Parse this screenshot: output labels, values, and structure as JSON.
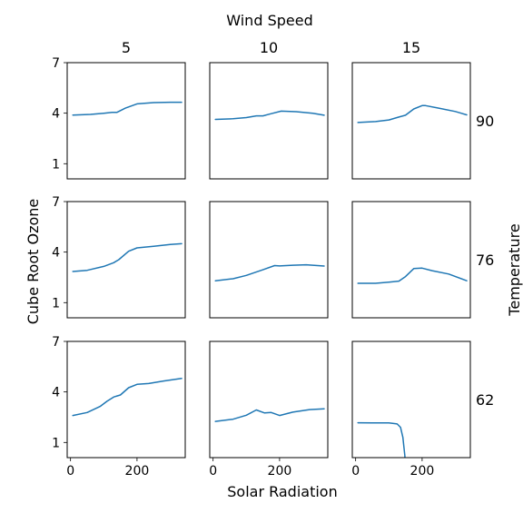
{
  "chart_data": {
    "type": "line",
    "title": "",
    "xlabel": "Solar Radiation",
    "ylabel": "Cube Root Ozone",
    "col_facet_label": "Wind Speed",
    "row_facet_label": "Temperature",
    "col_values": [
      "5",
      "10",
      "15"
    ],
    "row_values": [
      "90",
      "76",
      "62"
    ],
    "xlim": [
      -10,
      345
    ],
    "ylim": [
      0.1,
      7.0
    ],
    "xticks": [
      0,
      200
    ],
    "xtick_labels": [
      "0",
      "200"
    ],
    "yticks": [
      1,
      4,
      7
    ],
    "ytick_labels": [
      "1",
      "4",
      "7"
    ],
    "grid": false,
    "line_color": "#1f77b4",
    "panels": [
      {
        "row": "90",
        "col": "5",
        "x": [
          7,
          60,
          100,
          125,
          140,
          165,
          200,
          250,
          300,
          334
        ],
        "y": [
          3.89,
          3.93,
          4.0,
          4.05,
          4.05,
          4.3,
          4.55,
          4.63,
          4.65,
          4.65
        ]
      },
      {
        "row": "90",
        "col": "10",
        "x": [
          7,
          60,
          100,
          130,
          150,
          175,
          205,
          250,
          300,
          334
        ],
        "y": [
          3.63,
          3.67,
          3.74,
          3.84,
          3.84,
          3.97,
          4.12,
          4.09,
          3.99,
          3.88
        ]
      },
      {
        "row": "90",
        "col": "15",
        "x": [
          7,
          60,
          100,
          130,
          150,
          175,
          200,
          210,
          250,
          300,
          334
        ],
        "y": [
          3.45,
          3.5,
          3.6,
          3.77,
          3.88,
          4.25,
          4.45,
          4.45,
          4.3,
          4.1,
          3.9
        ]
      },
      {
        "row": "76",
        "col": "5",
        "x": [
          7,
          50,
          100,
          130,
          145,
          175,
          200,
          250,
          300,
          334
        ],
        "y": [
          2.85,
          2.92,
          3.15,
          3.37,
          3.55,
          4.05,
          4.25,
          4.35,
          4.45,
          4.5
        ]
      },
      {
        "row": "76",
        "col": "10",
        "x": [
          7,
          60,
          100,
          150,
          185,
          200,
          240,
          280,
          334
        ],
        "y": [
          2.3,
          2.42,
          2.62,
          2.95,
          3.2,
          3.18,
          3.22,
          3.25,
          3.17
        ]
      },
      {
        "row": "76",
        "col": "15",
        "x": [
          7,
          60,
          100,
          130,
          150,
          175,
          200,
          230,
          280,
          334
        ],
        "y": [
          2.15,
          2.15,
          2.22,
          2.28,
          2.55,
          3.02,
          3.05,
          2.9,
          2.7,
          2.3
        ]
      },
      {
        "row": "62",
        "col": "5",
        "x": [
          7,
          50,
          90,
          110,
          130,
          150,
          175,
          200,
          235,
          280,
          334
        ],
        "y": [
          2.6,
          2.78,
          3.15,
          3.45,
          3.7,
          3.82,
          4.25,
          4.45,
          4.5,
          4.65,
          4.8
        ]
      },
      {
        "row": "62",
        "col": "10",
        "x": [
          7,
          60,
          100,
          130,
          155,
          175,
          200,
          240,
          290,
          334
        ],
        "y": [
          2.25,
          2.38,
          2.62,
          2.93,
          2.75,
          2.78,
          2.6,
          2.8,
          2.95,
          3.0
        ]
      },
      {
        "row": "62",
        "col": "15",
        "x": [
          7,
          50,
          100,
          125,
          135,
          142,
          148,
          150
        ],
        "y": [
          2.17,
          2.16,
          2.16,
          2.1,
          1.9,
          1.3,
          0.2,
          -1.0
        ]
      }
    ]
  }
}
